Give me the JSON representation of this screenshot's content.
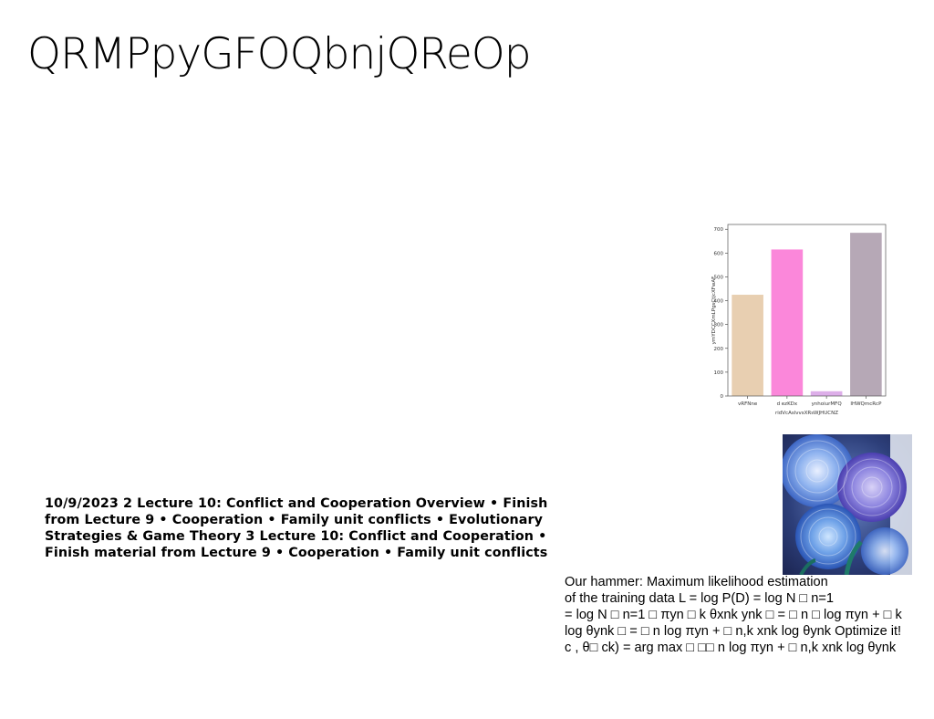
{
  "slide": {
    "title": "QRMPpyGFOQbnjQReOp"
  },
  "chart_data": {
    "type": "bar",
    "categories": [
      "vRFNne",
      "d ezKDx",
      "ynhoiurMFQ",
      "IHWQmcRcP"
    ],
    "values": [
      425,
      615,
      20,
      685
    ],
    "colors": [
      "#e8cfb1",
      "#fb87da",
      "#ddaee9",
      "#b6a8b6"
    ],
    "xlabel": "ridVcAslvvsXRsWJHUCNZ",
    "ylabel": "ymYDCCXmLPgsCtjcXFwAF",
    "yticks": [
      0,
      100,
      200,
      300,
      400,
      500,
      600,
      700
    ],
    "ylim": [
      0,
      720
    ],
    "grid": false
  },
  "image": {
    "icon": "blue-dahlia-flowers-photo"
  },
  "text_block_bold": "10/9/2023 2 Lecture 10: Conflict and Cooperation Overview • Finish from Lecture 9 • Cooperation • Family unit conflicts • Evolutionary Strategies & Game Theory 3 Lecture 10: Conflict and Cooperation • Finish material from Lecture 9 • Cooperation • Family unit conflicts",
  "text_block_plain": {
    "lines": [
      "Our hammer: Maximum likelihood estimation",
      "of the training data L = log P(D) = log N □ n=1",
      "= log N □ n=1 □ πyn □ k θxnk ynk □ = □ n □ log πyn + □ k",
      "log θynk □ = □ n log πyn + □ n,k xnk log θynk Optimize it!",
      "c , θ□ ck) = arg max □ □□ n log πyn + □ n,k xnk log θynk"
    ]
  }
}
